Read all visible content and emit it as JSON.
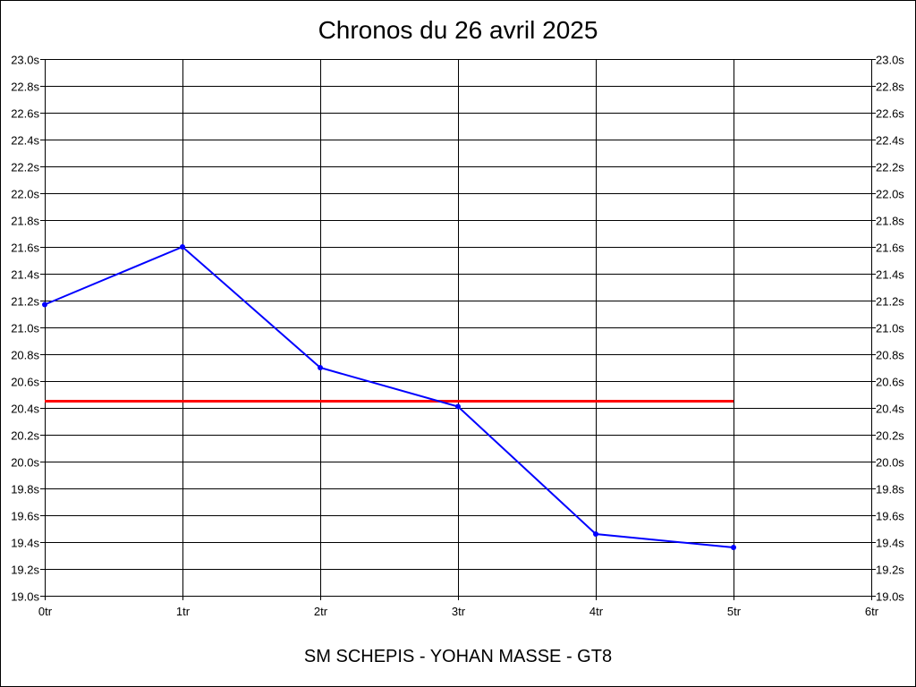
{
  "chart_data": {
    "type": "line",
    "title": "Chronos du 26 avril 2025",
    "xlabel": "SM SCHEPIS - YOHAN MASSE - GT8",
    "ylabel": "",
    "x": [
      0,
      1,
      2,
      3,
      4,
      5
    ],
    "x_tick_labels": [
      "0tr",
      "1tr",
      "2tr",
      "3tr",
      "4tr",
      "5tr",
      "6tr"
    ],
    "xlim": [
      0,
      6
    ],
    "y_tick_labels": [
      "19.0s",
      "19.2s",
      "19.4s",
      "19.6s",
      "19.8s",
      "20.0s",
      "20.2s",
      "20.4s",
      "20.6s",
      "20.8s",
      "21.0s",
      "21.2s",
      "21.4s",
      "21.6s",
      "21.8s",
      "22.0s",
      "22.2s",
      "22.4s",
      "22.6s",
      "22.8s",
      "23.0s"
    ],
    "ylim": [
      19.0,
      23.0
    ],
    "y_tick_step": 0.2,
    "grid": true,
    "series": [
      {
        "values": [
          21.17,
          21.6,
          20.7,
          20.41,
          19.46,
          19.36
        ],
        "color": "#0000ff"
      }
    ],
    "reference_line": {
      "value": 20.45,
      "x_range": [
        0,
        5
      ],
      "color": "#ff0000"
    }
  }
}
